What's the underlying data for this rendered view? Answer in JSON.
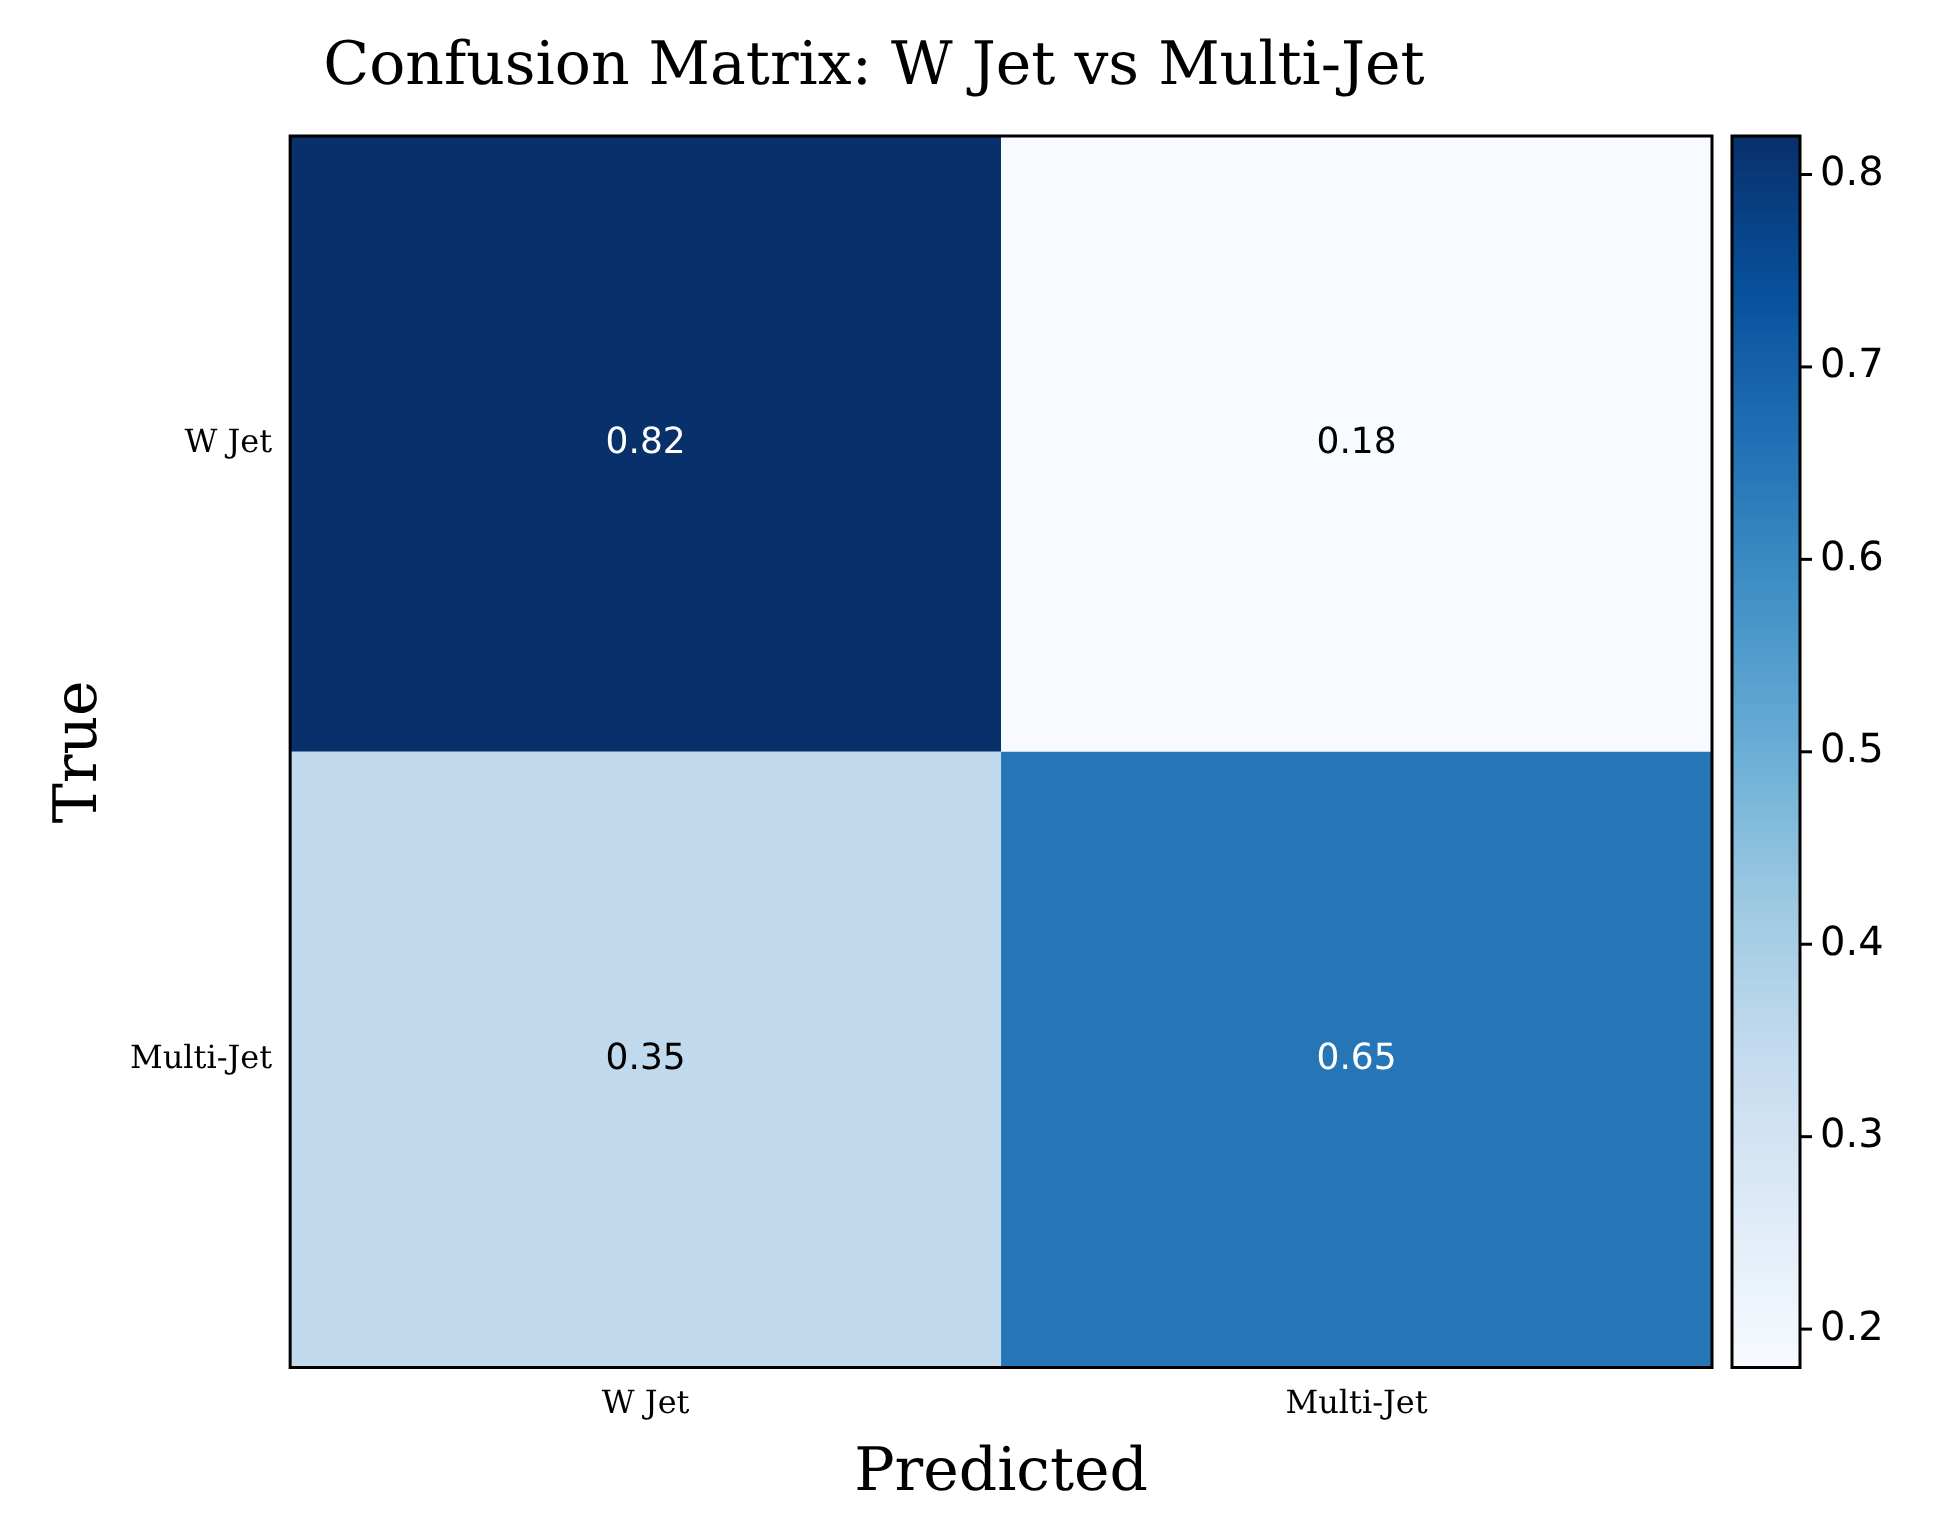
{
  "chart_data": {
    "type": "heatmap",
    "title": "Confusion Matrix: W Jet vs Multi-Jet",
    "xlabel": "Predicted",
    "ylabel": "True",
    "categories": [
      "W Jet",
      "Multi-Jet"
    ],
    "y_categories": [
      "W Jet",
      "Multi-Jet"
    ],
    "cells": [
      [
        0.82,
        0.18
      ],
      [
        0.35,
        0.65
      ]
    ],
    "data_labels": true,
    "clim": [
      0.18,
      0.82
    ],
    "cticks": [
      0.2,
      0.3,
      0.4,
      0.5,
      0.6,
      0.7,
      0.8
    ]
  }
}
